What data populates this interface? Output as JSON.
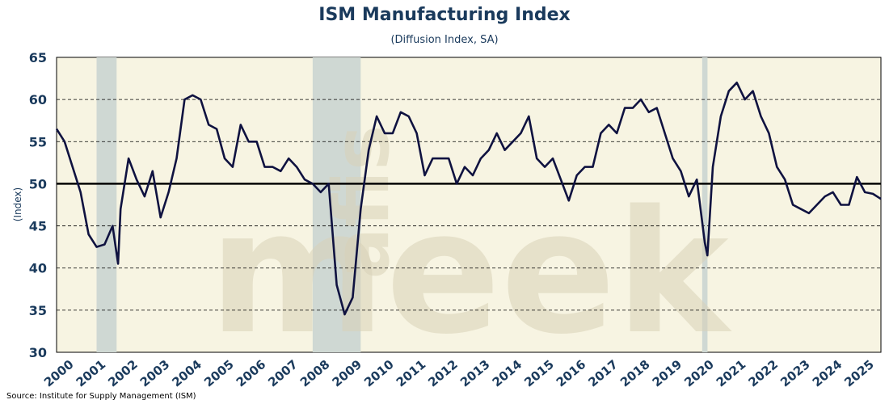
{
  "chart_data": {
    "type": "line",
    "title": "ISM Manufacturing Index",
    "subtitle": "(Diffusion Index, SA)",
    "ylabel": "(Index)",
    "ylim": [
      30,
      65
    ],
    "y_ticks": [
      "30",
      "35",
      "40",
      "45",
      "50",
      "55",
      "60",
      "65"
    ],
    "x_ticks": [
      "2000",
      "2001",
      "2002",
      "2003",
      "2004",
      "2005",
      "2006",
      "2007",
      "2008",
      "2009",
      "2010",
      "2011",
      "2012",
      "2013",
      "2014",
      "2015",
      "2016",
      "2017",
      "2018",
      "2019",
      "2020",
      "2021",
      "2022",
      "2023",
      "2024",
      "2025"
    ],
    "xlim": [
      2000.0,
      2025.75
    ],
    "reference_line": 50,
    "recessions": [
      [
        2001.25,
        2001.875
      ],
      [
        2008.0,
        2009.5
      ],
      [
        2020.167,
        2020.333
      ]
    ],
    "watermark": "afis meek",
    "grid": "horizontal dashed",
    "source": "Source: Institute for Supply Management (ISM)",
    "colors": {
      "line": "#0f1240",
      "background": "#f7f4e2",
      "recession": "#cfd8d3",
      "text": "#1a3a5c"
    },
    "series": [
      {
        "x": [
          2000.0,
          2000.25,
          2000.5,
          2000.75,
          2001.0,
          2001.25,
          2001.5,
          2001.75,
          2001.92,
          2002.0,
          2002.25,
          2002.5,
          2002.75,
          2003.0,
          2003.25,
          2003.5,
          2003.75,
          2004.0,
          2004.25,
          2004.5,
          2004.75,
          2005.0,
          2005.25,
          2005.5,
          2005.75,
          2006.0,
          2006.25,
          2006.5,
          2006.75,
          2007.0,
          2007.25,
          2007.5,
          2007.75,
          2008.0,
          2008.25,
          2008.5,
          2008.75,
          2009.0,
          2009.25,
          2009.5,
          2009.75,
          2010.0,
          2010.25,
          2010.5,
          2010.75,
          2011.0,
          2011.25,
          2011.5,
          2011.75,
          2012.0,
          2012.25,
          2012.5,
          2012.75,
          2013.0,
          2013.25,
          2013.5,
          2013.75,
          2014.0,
          2014.25,
          2014.5,
          2014.75,
          2015.0,
          2015.25,
          2015.5,
          2015.75,
          2016.0,
          2016.25,
          2016.5,
          2016.75,
          2017.0,
          2017.25,
          2017.5,
          2017.75,
          2018.0,
          2018.25,
          2018.5,
          2018.75,
          2019.0,
          2019.25,
          2019.5,
          2019.75,
          2020.0,
          2020.25,
          2020.33,
          2020.5,
          2020.75,
          2021.0,
          2021.25,
          2021.5,
          2021.75,
          2022.0,
          2022.25,
          2022.5,
          2022.75,
          2023.0,
          2023.25,
          2023.5,
          2023.75,
          2024.0,
          2024.25,
          2024.5,
          2024.75,
          2025.0,
          2025.25,
          2025.5,
          2025.75
        ],
        "values": [
          56.5,
          55.0,
          52.0,
          49.0,
          44.0,
          42.5,
          42.8,
          45.0,
          40.5,
          47.0,
          53.0,
          50.5,
          48.5,
          51.5,
          46.0,
          49.0,
          53.0,
          60.0,
          60.5,
          60.0,
          57.0,
          56.5,
          53.0,
          52.0,
          57.0,
          55.0,
          55.0,
          52.0,
          52.0,
          51.5,
          53.0,
          52.0,
          50.5,
          50.0,
          49.0,
          50.0,
          38.0,
          34.5,
          36.5,
          47.0,
          54.0,
          58.0,
          56.0,
          56.0,
          58.5,
          58.0,
          56.0,
          51.0,
          53.0,
          53.0,
          53.0,
          50.0,
          52.0,
          51.0,
          53.0,
          54.0,
          56.0,
          54.0,
          55.0,
          56.0,
          58.0,
          53.0,
          52.0,
          53.0,
          50.5,
          48.0,
          51.0,
          52.0,
          52.0,
          56.0,
          57.0,
          56.0,
          59.0,
          59.0,
          60.0,
          58.5,
          59.0,
          56.0,
          53.0,
          51.5,
          48.5,
          50.5,
          43.0,
          41.5,
          52.0,
          58.0,
          61.0,
          62.0,
          60.0,
          61.0,
          58.0,
          56.0,
          52.0,
          50.5,
          47.5,
          47.0,
          46.5,
          47.5,
          48.5,
          49.0,
          47.5,
          47.5,
          50.8,
          49.0,
          48.8,
          48.2
        ]
      }
    ]
  }
}
